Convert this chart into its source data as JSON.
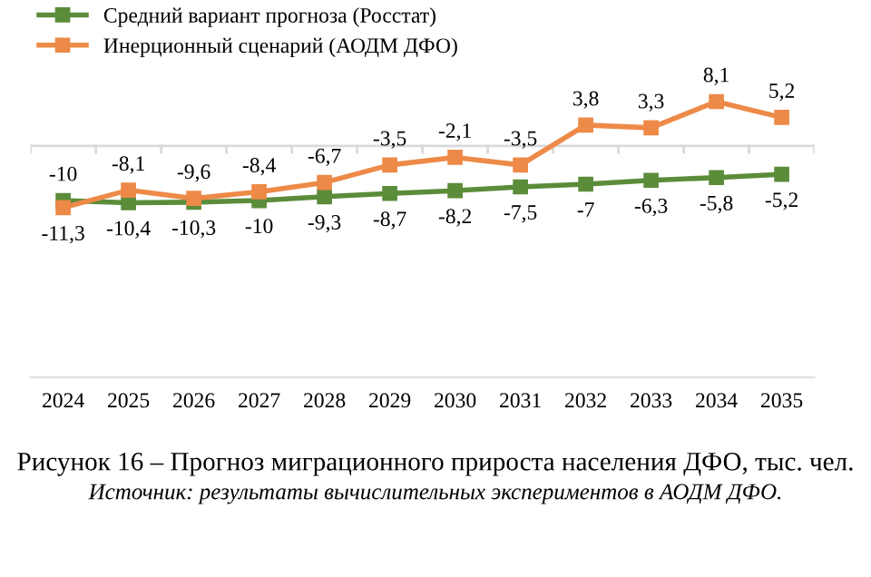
{
  "chart_data": {
    "type": "line",
    "categories": [
      "2024",
      "2025",
      "2026",
      "2027",
      "2028",
      "2029",
      "2030",
      "2031",
      "2032",
      "2033",
      "2034",
      "2035"
    ],
    "series": [
      {
        "name": "Средний вариант прогноза (Росстат)",
        "color": "#5b8c3a",
        "values": [
          -10,
          -10.4,
          -10.3,
          -10,
          -9.3,
          -8.7,
          -8.2,
          -7.5,
          -7,
          -6.3,
          -5.8,
          -5.2
        ],
        "value_labels": [
          "-10",
          "-10,4",
          "-10,3",
          "-10",
          "-9,3",
          "-8,7",
          "-8,2",
          "-7,5",
          "-7",
          "-6,3",
          "-5,8",
          "-5,2"
        ]
      },
      {
        "name": "Инерционный сценарий (АОДМ ДФО)",
        "color": "#ed8a48",
        "values": [
          -11.3,
          -8.1,
          -9.6,
          -8.4,
          -6.7,
          -3.5,
          -2.1,
          -3.5,
          3.8,
          3.3,
          8.1,
          5.2
        ],
        "value_labels": [
          "-11,3",
          "-8,1",
          "-9,6",
          "-8,4",
          "-6,7",
          "-3,5",
          "-2,1",
          "-3,5",
          "3,8",
          "3,3",
          "8,1",
          "5,2"
        ]
      }
    ],
    "ref_lines": [
      {
        "axis": "y",
        "value": 0,
        "color": "#d9d9d9"
      }
    ],
    "tick_labels": "x",
    "grid": false,
    "legend": "top left",
    "marker": "square",
    "line_style": "solid",
    "annotations": [
      "Рисунок 16 – Прогноз миграционного прироста населения ДФО, тыс. чел.",
      "Источник: результаты вычислительных экспериментов в АОДМ ДФО."
    ]
  }
}
